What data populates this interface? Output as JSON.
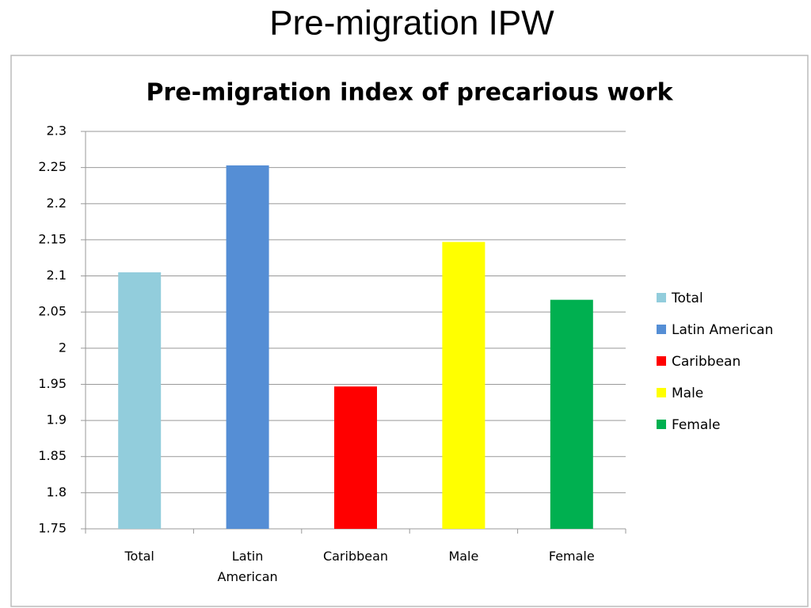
{
  "title": "Pre-migration IPW",
  "chart_data": {
    "type": "bar",
    "title": "Pre-migration index of precarious work",
    "categories": [
      "Total",
      "Latin American",
      "Caribbean",
      "Male",
      "Female"
    ],
    "values": [
      2.105,
      2.253,
      1.947,
      2.147,
      2.067
    ],
    "colors": [
      "#92cddc",
      "#558ed5",
      "#ff0000",
      "#ffff00",
      "#00b050"
    ],
    "ylim": [
      1.75,
      2.3
    ],
    "yticks": [
      1.75,
      1.8,
      1.85,
      1.9,
      1.95,
      2,
      2.05,
      2.1,
      2.15,
      2.2,
      2.25,
      2.3
    ],
    "grid": true,
    "legend": "right"
  }
}
